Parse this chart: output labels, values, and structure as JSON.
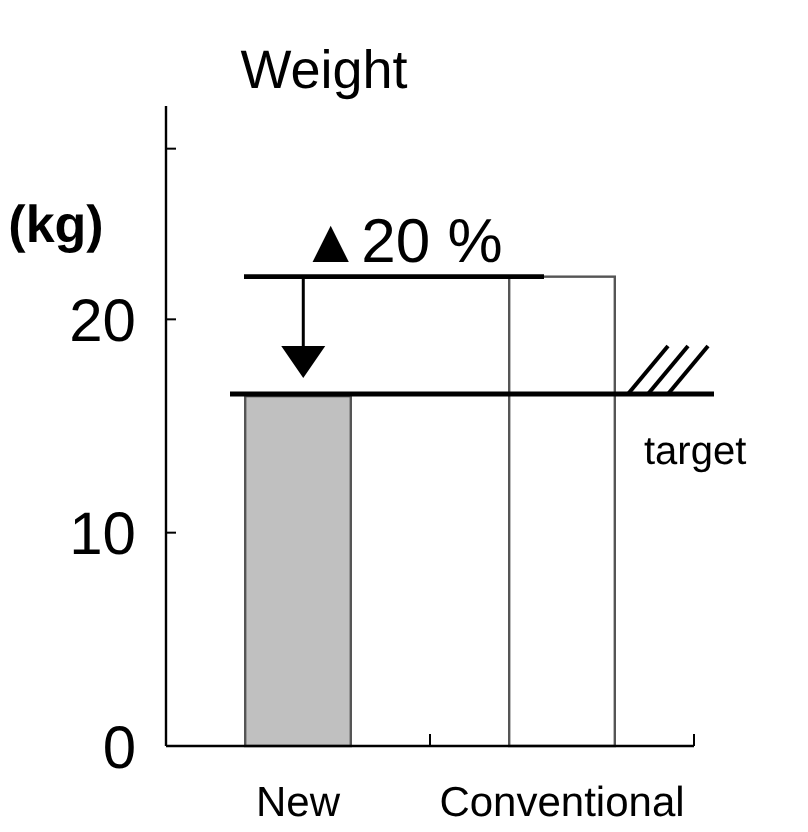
{
  "chart_data": {
    "type": "bar",
    "title": "Weight",
    "ylabel": "(kg)",
    "categories": [
      "New",
      "Conventional"
    ],
    "values": [
      16.4,
      22
    ],
    "colors": [
      "#c0c0c0",
      "#ffffff"
    ],
    "ylim": [
      0,
      30
    ],
    "yticks": [
      0,
      10,
      20,
      {
        "value": 28,
        "label": null
      }
    ],
    "grid": false,
    "ref_lines": [
      {
        "axis": "y",
        "value": 22,
        "label": null
      },
      {
        "axis": "y",
        "value": 16.5,
        "label": "target"
      }
    ],
    "annotations": [
      "▲20 %"
    ]
  }
}
